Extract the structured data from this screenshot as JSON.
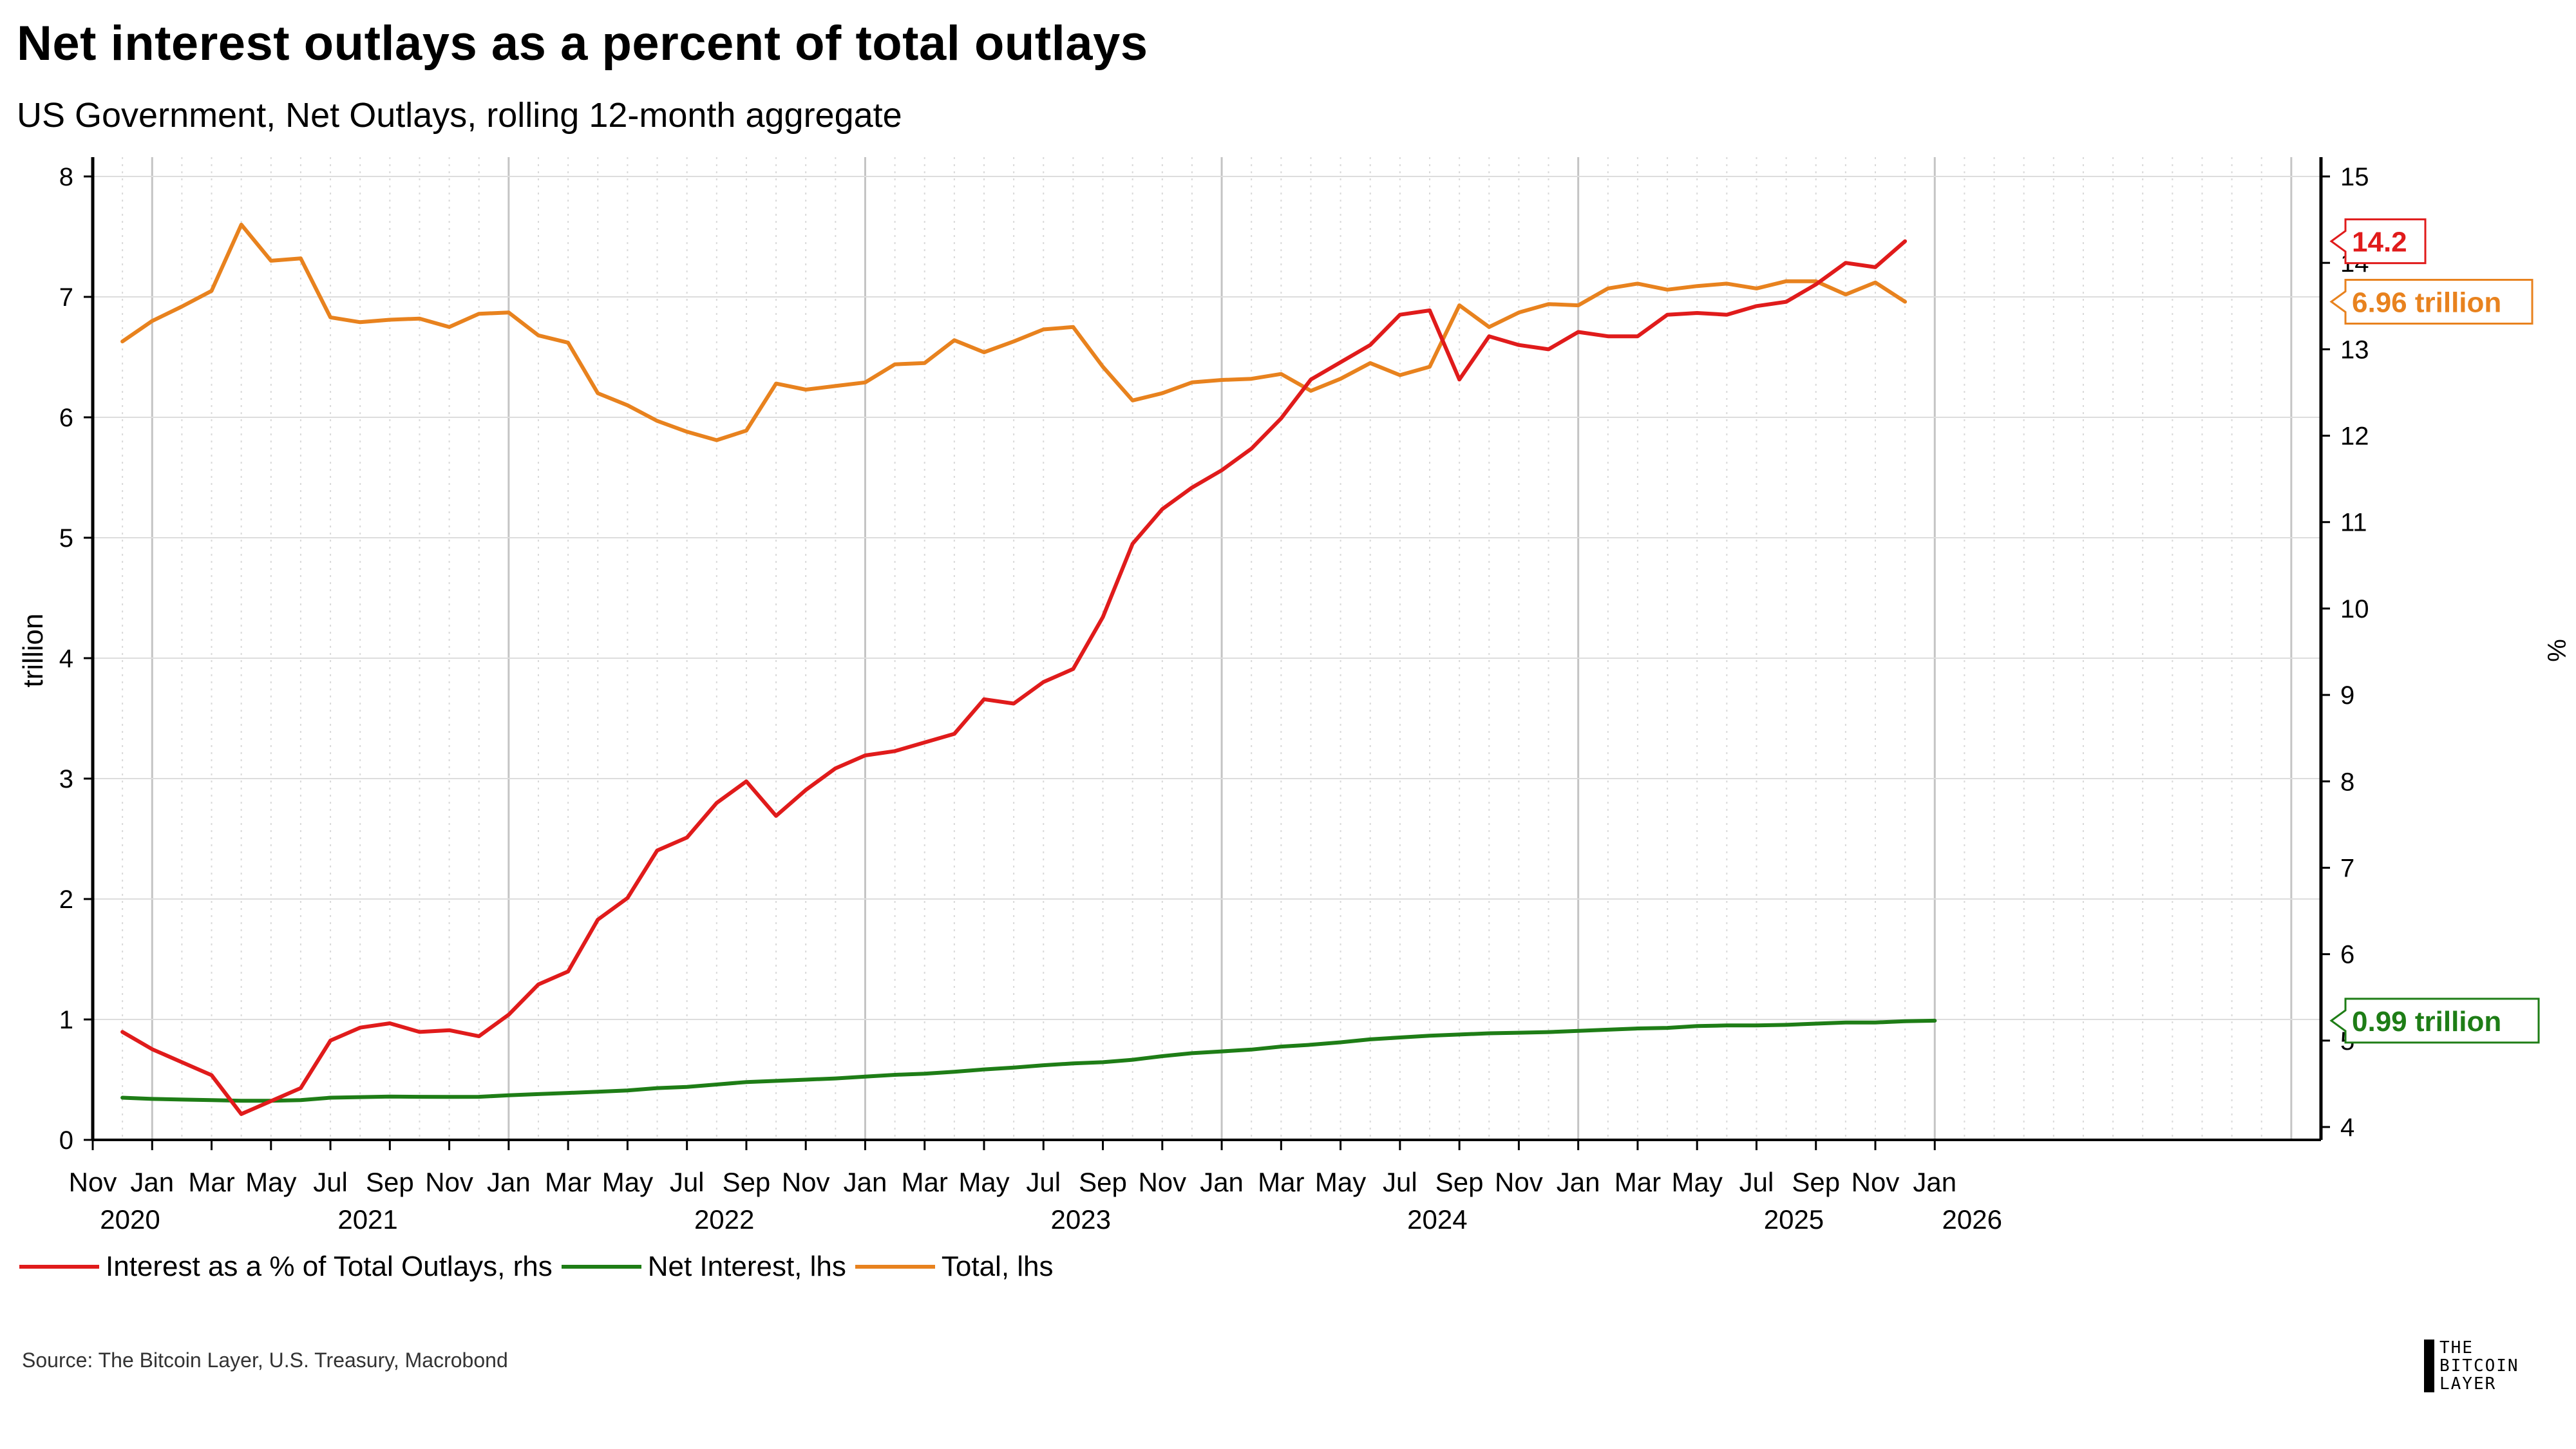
{
  "header": {
    "title": "Net interest outlays as a percent of total outlays",
    "subtitle": "US Government, Net Outlays, rolling 12-month aggregate"
  },
  "footer": {
    "source": "Source: The Bitcoin Layer, U.S. Treasury, Macrobond",
    "logo_lines": [
      "THE",
      "BITCOIN",
      "LAYER"
    ]
  },
  "legend": {
    "items": [
      {
        "label": "Interest as a % of Total Outlays, rhs",
        "color": "#e01b1b"
      },
      {
        "label": "Net Interest, lhs",
        "color": "#1e7d16"
      },
      {
        "label": "Total, lhs",
        "color": "#e8821e"
      }
    ]
  },
  "chart_data": {
    "type": "line",
    "x_start": "2019-11",
    "x_end": "2026-01",
    "left_axis": {
      "label": "trillion",
      "range": [
        0,
        8
      ],
      "ticks": [
        0,
        1,
        2,
        3,
        4,
        5,
        6,
        7,
        8
      ]
    },
    "right_axis": {
      "label": "%",
      "range": [
        3.8,
        15.2
      ],
      "ticks": [
        4,
        5,
        6,
        7,
        8,
        9,
        10,
        11,
        12,
        13,
        14,
        15
      ]
    },
    "x_tick_labels": [
      {
        "date": "2019-11",
        "month": "Nov",
        "year": "2020"
      },
      {
        "date": "2020-01",
        "month": "Jan",
        "year": ""
      },
      {
        "date": "2020-03",
        "month": "Mar",
        "year": ""
      },
      {
        "date": "2020-05",
        "month": "May",
        "year": ""
      },
      {
        "date": "2020-07",
        "month": "Jul",
        "year": "2021"
      },
      {
        "date": "2020-09",
        "month": "Sep",
        "year": ""
      },
      {
        "date": "2020-11",
        "month": "Nov",
        "year": ""
      },
      {
        "date": "2021-01",
        "month": "Jan",
        "year": ""
      },
      {
        "date": "2021-03",
        "month": "Mar",
        "year": ""
      },
      {
        "date": "2021-05",
        "month": "May",
        "year": ""
      },
      {
        "date": "2021-07",
        "month": "Jul",
        "year": "2022"
      },
      {
        "date": "2021-09",
        "month": "Sep",
        "year": ""
      },
      {
        "date": "2021-11",
        "month": "Nov",
        "year": ""
      },
      {
        "date": "2022-01",
        "month": "Jan",
        "year": ""
      },
      {
        "date": "2022-03",
        "month": "Mar",
        "year": ""
      },
      {
        "date": "2022-05",
        "month": "May",
        "year": ""
      },
      {
        "date": "2022-07",
        "month": "Jul",
        "year": "2023"
      },
      {
        "date": "2022-09",
        "month": "Sep",
        "year": ""
      },
      {
        "date": "2022-11",
        "month": "Nov",
        "year": ""
      },
      {
        "date": "2023-01",
        "month": "Jan",
        "year": ""
      },
      {
        "date": "2023-03",
        "month": "Mar",
        "year": ""
      },
      {
        "date": "2023-05",
        "month": "May",
        "year": ""
      },
      {
        "date": "2023-07",
        "month": "Jul",
        "year": "2024"
      },
      {
        "date": "2023-09",
        "month": "Sep",
        "year": ""
      },
      {
        "date": "2023-11",
        "month": "Nov",
        "year": ""
      },
      {
        "date": "2024-01",
        "month": "Jan",
        "year": ""
      },
      {
        "date": "2024-03",
        "month": "Mar",
        "year": ""
      },
      {
        "date": "2024-05",
        "month": "May",
        "year": ""
      },
      {
        "date": "2024-07",
        "month": "Jul",
        "year": "2025"
      },
      {
        "date": "2024-09",
        "month": "Sep",
        "year": ""
      },
      {
        "date": "2024-11",
        "month": "Nov",
        "year": ""
      },
      {
        "date": "2025-01",
        "month": "Jan",
        "year": "2026"
      }
    ],
    "x_months": [
      "2019-12",
      "2020-01",
      "2020-02",
      "2020-03",
      "2020-04",
      "2020-05",
      "2020-06",
      "2020-07",
      "2020-08",
      "2020-09",
      "2020-10",
      "2020-11",
      "2020-12",
      "2021-01",
      "2021-02",
      "2021-03",
      "2021-04",
      "2021-05",
      "2021-06",
      "2021-07",
      "2021-08",
      "2021-09",
      "2021-10",
      "2021-11",
      "2021-12",
      "2022-01",
      "2022-02",
      "2022-03",
      "2022-04",
      "2022-05",
      "2022-06",
      "2022-07",
      "2022-08",
      "2022-09",
      "2022-10",
      "2022-11",
      "2022-12",
      "2023-01",
      "2023-02",
      "2023-03",
      "2023-04",
      "2023-05",
      "2023-06",
      "2023-07",
      "2023-08",
      "2023-09",
      "2023-10",
      "2023-11",
      "2023-12",
      "2024-01",
      "2024-02",
      "2024-03",
      "2024-04",
      "2024-05",
      "2024-06",
      "2024-07",
      "2024-08",
      "2024-09",
      "2024-10",
      "2024-11",
      "2024-12",
      "2025-01",
      "2025-02",
      "2025-03",
      "2025-04",
      "2025-05",
      "2025-06",
      "2025-07",
      "2025-08",
      "2025-09",
      "2025-10",
      "2025-11",
      "2025-12"
    ],
    "series": [
      {
        "name": "Interest as a % of Total Outlays, rhs",
        "axis": "right",
        "color": "#e01b1b",
        "end_label": "14.2",
        "values": [
          5.1,
          4.9,
          4.75,
          4.6,
          4.15,
          4.3,
          4.45,
          5.0,
          5.15,
          5.2,
          5.1,
          5.12,
          5.05,
          5.3,
          5.65,
          5.8,
          6.4,
          6.65,
          7.2,
          7.35,
          7.75,
          8.0,
          7.6,
          7.9,
          8.15,
          8.3,
          8.35,
          8.45,
          8.55,
          8.95,
          8.9,
          9.15,
          9.3,
          9.9,
          10.75,
          11.15,
          11.4,
          11.6,
          11.85,
          12.2,
          12.65,
          12.85,
          13.05,
          13.4,
          13.45,
          12.65,
          13.15,
          13.05,
          13.0,
          13.2,
          13.15,
          13.15,
          13.4,
          13.42,
          13.4,
          13.5,
          13.55,
          13.75,
          14.0,
          13.95,
          14.25
        ],
        "x_index_start": 0
      },
      {
        "name": "Net Interest, lhs",
        "axis": "left",
        "color": "#1e7d16",
        "end_label": "0.99 trillion",
        "values": [
          0.35,
          0.34,
          0.335,
          0.33,
          0.325,
          0.325,
          0.33,
          0.35,
          0.355,
          0.36,
          0.358,
          0.357,
          0.358,
          0.37,
          0.38,
          0.39,
          0.4,
          0.41,
          0.43,
          0.44,
          0.46,
          0.48,
          0.49,
          0.5,
          0.51,
          0.525,
          0.54,
          0.55,
          0.565,
          0.585,
          0.6,
          0.62,
          0.635,
          0.645,
          0.665,
          0.695,
          0.72,
          0.735,
          0.75,
          0.775,
          0.79,
          0.81,
          0.835,
          0.85,
          0.865,
          0.875,
          0.885,
          0.89,
          0.895,
          0.905,
          0.915,
          0.925,
          0.93,
          0.945,
          0.95,
          0.95,
          0.955,
          0.965,
          0.975,
          0.975,
          0.985,
          0.99
        ],
        "x_index_start": 0
      },
      {
        "name": "Total, lhs",
        "axis": "left",
        "color": "#e8821e",
        "end_label": "6.96 trillion",
        "values": [
          6.63,
          6.8,
          6.92,
          7.05,
          7.6,
          7.3,
          7.32,
          6.83,
          6.79,
          6.81,
          6.82,
          6.75,
          6.86,
          6.87,
          6.68,
          6.62,
          6.2,
          6.1,
          5.97,
          5.88,
          5.81,
          5.89,
          6.28,
          6.23,
          6.26,
          6.29,
          6.44,
          6.45,
          6.64,
          6.54,
          6.63,
          6.73,
          6.75,
          6.42,
          6.14,
          6.2,
          6.29,
          6.31,
          6.32,
          6.36,
          6.22,
          6.32,
          6.45,
          6.35,
          6.42,
          6.93,
          6.75,
          6.87,
          6.94,
          6.93,
          7.07,
          7.11,
          7.06,
          7.09,
          7.11,
          7.07,
          7.13,
          7.13,
          7.02,
          7.12,
          6.96
        ],
        "x_index_start": 0
      }
    ],
    "grid": true,
    "legend_position": "bottom-left"
  }
}
